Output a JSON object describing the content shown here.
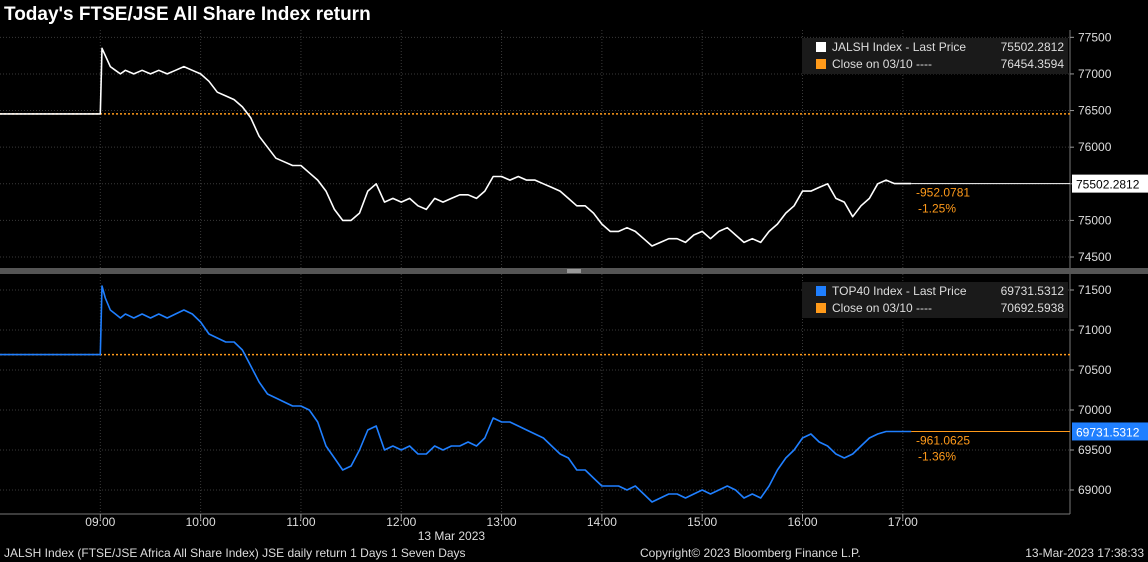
{
  "title": "Today's FTSE/JSE All Share Index return",
  "footer": {
    "description": "JALSH Index (FTSE/JSE Africa All Share Index) JSE daily return 1 Days 1 Seven Days",
    "copyright": "Copyright© 2023 Bloomberg Finance L.P.",
    "timestamp": "13-Mar-2023 17:38:33"
  },
  "colors": {
    "background": "#000000",
    "jalsh": "#ffffff",
    "top40": "#1f7fff",
    "close": "#ff9a1a",
    "grid": "#3a3a3a"
  },
  "chart_data": [
    {
      "type": "line",
      "x_labels": [
        "09:00",
        "10:00",
        "11:00",
        "12:00",
        "13:00",
        "14:00",
        "15:00",
        "16:00",
        "17:00"
      ],
      "x_date_label": "13 Mar 2023",
      "yticks": [
        74500,
        75000,
        75500,
        76000,
        76500,
        77000,
        77500
      ],
      "ylim": [
        74350,
        77600
      ],
      "legend": [
        {
          "name": "JALSH Index - Last Price",
          "value": "75502.2812"
        },
        {
          "name": "Close on 03/10 ----",
          "value": "76454.3594"
        }
      ],
      "last_value_label": "75502.2812",
      "change": "-952.0781",
      "change_pct": "-1.25%",
      "close": 76454.3594,
      "last": 75502.2812,
      "series": {
        "name": "JALSH Index",
        "x": [
          "08:00",
          "09:00",
          "09:01",
          "09:03",
          "09:06",
          "09:09",
          "09:12",
          "09:15",
          "09:20",
          "09:25",
          "09:30",
          "09:35",
          "09:40",
          "09:45",
          "09:50",
          "09:55",
          "10:00",
          "10:05",
          "10:10",
          "10:15",
          "10:20",
          "10:25",
          "10:30",
          "10:35",
          "10:40",
          "10:45",
          "10:50",
          "10:55",
          "11:00",
          "11:05",
          "11:10",
          "11:15",
          "11:20",
          "11:25",
          "11:30",
          "11:35",
          "11:40",
          "11:45",
          "11:50",
          "11:55",
          "12:00",
          "12:05",
          "12:10",
          "12:15",
          "12:20",
          "12:25",
          "12:30",
          "12:35",
          "12:40",
          "12:45",
          "12:50",
          "12:55",
          "13:00",
          "13:05",
          "13:10",
          "13:15",
          "13:20",
          "13:25",
          "13:30",
          "13:35",
          "13:40",
          "13:45",
          "13:50",
          "13:55",
          "14:00",
          "14:05",
          "14:10",
          "14:15",
          "14:20",
          "14:25",
          "14:30",
          "14:35",
          "14:40",
          "14:45",
          "14:50",
          "14:55",
          "15:00",
          "15:05",
          "15:10",
          "15:15",
          "15:20",
          "15:25",
          "15:30",
          "15:35",
          "15:40",
          "15:45",
          "15:50",
          "15:55",
          "16:00",
          "16:05",
          "16:10",
          "16:15",
          "16:20",
          "16:25",
          "16:30",
          "16:35",
          "16:40",
          "16:45",
          "16:50",
          "16:55",
          "17:00",
          "17:05"
        ],
        "values": [
          76454,
          76454,
          77350,
          77250,
          77100,
          77050,
          77000,
          77050,
          77000,
          77050,
          77000,
          77050,
          77000,
          77050,
          77100,
          77050,
          77000,
          76900,
          76750,
          76700,
          76650,
          76550,
          76400,
          76150,
          76000,
          75850,
          75800,
          75750,
          75750,
          75650,
          75550,
          75400,
          75150,
          75000,
          75000,
          75100,
          75400,
          75500,
          75250,
          75300,
          75250,
          75300,
          75200,
          75150,
          75300,
          75250,
          75300,
          75350,
          75350,
          75300,
          75400,
          75600,
          75600,
          75550,
          75600,
          75550,
          75550,
          75500,
          75450,
          75400,
          75300,
          75200,
          75200,
          75100,
          74950,
          74850,
          74850,
          74900,
          74850,
          74750,
          74650,
          74700,
          74750,
          74750,
          74700,
          74800,
          74850,
          74750,
          74850,
          74900,
          74800,
          74700,
          74750,
          74700,
          74850,
          74950,
          75100,
          75200,
          75400,
          75400,
          75450,
          75500,
          75300,
          75250,
          75050,
          75200,
          75300,
          75500,
          75550,
          75502,
          75502,
          75502
        ]
      }
    },
    {
      "type": "line",
      "x_labels": [
        "09:00",
        "10:00",
        "11:00",
        "12:00",
        "13:00",
        "14:00",
        "15:00",
        "16:00",
        "17:00"
      ],
      "x_date_label": "13 Mar 2023",
      "yticks": [
        69000,
        69500,
        70000,
        70500,
        71000,
        71500
      ],
      "ylim": [
        68700,
        71700
      ],
      "legend": [
        {
          "name": "TOP40 Index - Last Price",
          "value": "69731.5312"
        },
        {
          "name": "Close on 03/10 ----",
          "value": "70692.5938"
        }
      ],
      "last_value_label": "69731.5312",
      "change": "-961.0625",
      "change_pct": "-1.36%",
      "close": 70692.5938,
      "last": 69731.5312,
      "series": {
        "name": "TOP40 Index",
        "x": [
          "08:00",
          "09:00",
          "09:01",
          "09:03",
          "09:06",
          "09:09",
          "09:12",
          "09:15",
          "09:20",
          "09:25",
          "09:30",
          "09:35",
          "09:40",
          "09:45",
          "09:50",
          "09:55",
          "10:00",
          "10:05",
          "10:10",
          "10:15",
          "10:20",
          "10:25",
          "10:30",
          "10:35",
          "10:40",
          "10:45",
          "10:50",
          "10:55",
          "11:00",
          "11:05",
          "11:10",
          "11:15",
          "11:20",
          "11:25",
          "11:30",
          "11:35",
          "11:40",
          "11:45",
          "11:50",
          "11:55",
          "12:00",
          "12:05",
          "12:10",
          "12:15",
          "12:20",
          "12:25",
          "12:30",
          "12:35",
          "12:40",
          "12:45",
          "12:50",
          "12:55",
          "13:00",
          "13:05",
          "13:10",
          "13:15",
          "13:20",
          "13:25",
          "13:30",
          "13:35",
          "13:40",
          "13:45",
          "13:50",
          "13:55",
          "14:00",
          "14:05",
          "14:10",
          "14:15",
          "14:20",
          "14:25",
          "14:30",
          "14:35",
          "14:40",
          "14:45",
          "14:50",
          "14:55",
          "15:00",
          "15:05",
          "15:10",
          "15:15",
          "15:20",
          "15:25",
          "15:30",
          "15:35",
          "15:40",
          "15:45",
          "15:50",
          "15:55",
          "16:00",
          "16:05",
          "16:10",
          "16:15",
          "16:20",
          "16:25",
          "16:30",
          "16:35",
          "16:40",
          "16:45",
          "16:50",
          "16:55",
          "17:00",
          "17:05"
        ],
        "values": [
          70692,
          70692,
          71550,
          71400,
          71250,
          71200,
          71150,
          71200,
          71150,
          71200,
          71150,
          71200,
          71150,
          71200,
          71250,
          71200,
          71100,
          70950,
          70900,
          70850,
          70850,
          70750,
          70550,
          70350,
          70200,
          70150,
          70100,
          70050,
          70050,
          70000,
          69850,
          69550,
          69400,
          69250,
          69300,
          69500,
          69750,
          69800,
          69500,
          69550,
          69500,
          69550,
          69450,
          69450,
          69550,
          69500,
          69550,
          69550,
          69600,
          69550,
          69650,
          69900,
          69850,
          69850,
          69800,
          69750,
          69700,
          69650,
          69550,
          69450,
          69400,
          69250,
          69250,
          69150,
          69050,
          69050,
          69050,
          69000,
          69050,
          68950,
          68850,
          68900,
          68950,
          68950,
          68900,
          68950,
          69000,
          68950,
          69000,
          69050,
          69000,
          68900,
          68950,
          68900,
          69050,
          69250,
          69400,
          69500,
          69650,
          69700,
          69600,
          69550,
          69450,
          69400,
          69450,
          69550,
          69650,
          69700,
          69731,
          69731,
          69731,
          69731
        ]
      }
    }
  ]
}
